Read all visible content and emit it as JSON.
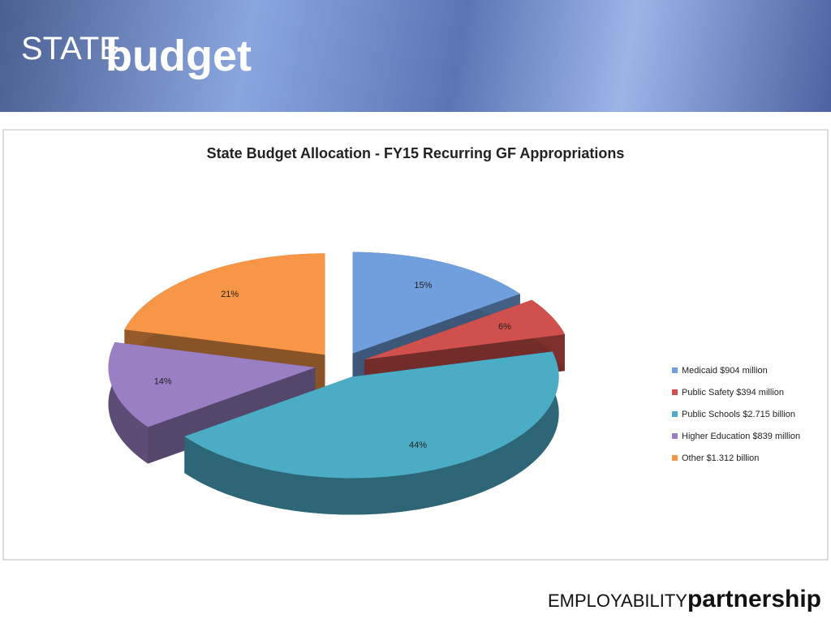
{
  "header": {
    "state": "STATE",
    "budget": "budget"
  },
  "footer": {
    "employability": "EMPLOYABILITY",
    "partnership": "partnership"
  },
  "chart_data": {
    "type": "pie",
    "title": "State Budget Allocation - FY15 Recurring GF Appropriations",
    "categories": [
      "Medicaid $904 million",
      "Public Safety $394 million",
      "Public Schools $2.715 billion",
      "Higher Education $839 million",
      "Other $1.312 billion"
    ],
    "values": [
      15,
      6,
      44,
      14,
      21
    ],
    "value_labels": [
      "15%",
      "6%",
      "44%",
      "14%",
      "21%"
    ],
    "colors": [
      "#6f9fdc",
      "#d0504d",
      "#4bacc6",
      "#9a7fc4",
      "#f79646"
    ],
    "legend": "right"
  }
}
